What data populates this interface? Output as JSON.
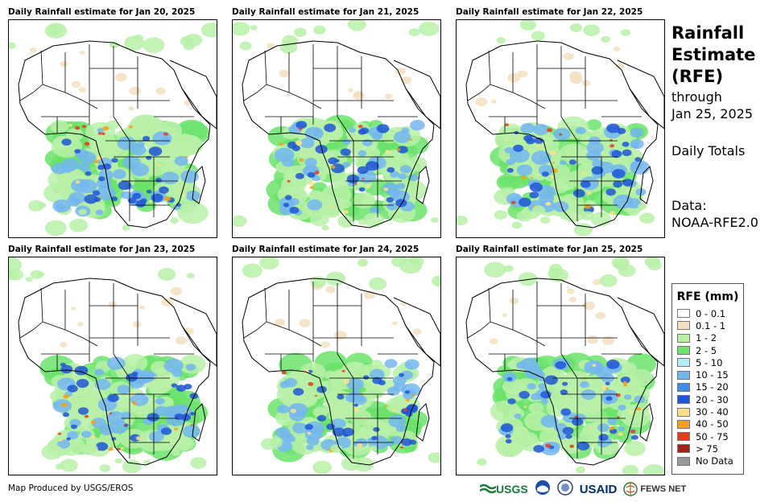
{
  "panels": [
    {
      "title": "Daily Rainfall estimate for Jan 20, 2025"
    },
    {
      "title": "Daily Rainfall estimate for Jan 21, 2025"
    },
    {
      "title": "Daily Rainfall estimate for Jan 22, 2025"
    },
    {
      "title": "Daily Rainfall estimate for Jan 23, 2025"
    },
    {
      "title": "Daily Rainfall estimate for Jan 24, 2025"
    },
    {
      "title": "Daily Rainfall estimate for Jan 25, 2025"
    }
  ],
  "side": {
    "line1": "Rainfall",
    "line2": "Estimate",
    "line3": "(RFE)",
    "through": "through",
    "date": "Jan 25, 2025",
    "totals": "Daily Totals",
    "data_label": "Data:",
    "data_source": "NOAA-RFE2.0"
  },
  "legend": {
    "title": "RFE (mm)",
    "items": [
      {
        "label": "0 - 0.1",
        "color": "#ffffff"
      },
      {
        "label": "0.1 - 1",
        "color": "#f2dfbf"
      },
      {
        "label": "1 - 2",
        "color": "#b8f0a8"
      },
      {
        "label": "2 - 5",
        "color": "#6be36b"
      },
      {
        "label": "5 - 10",
        "color": "#b5ecf5"
      },
      {
        "label": "10 - 15",
        "color": "#73b6f0"
      },
      {
        "label": "15 - 20",
        "color": "#3c8fe8"
      },
      {
        "label": "20 - 30",
        "color": "#1f56d6"
      },
      {
        "label": "30 - 40",
        "color": "#ffe08a"
      },
      {
        "label": "40 - 50",
        "color": "#f5a017"
      },
      {
        "label": "50 - 75",
        "color": "#e83b1a"
      },
      {
        "label": "> 75",
        "color": "#a8201a"
      },
      {
        "label": "No Data",
        "color": "#999999"
      }
    ]
  },
  "footer": {
    "credit": "Map Produced by USGS/EROS"
  },
  "logos": {
    "usgs": "USGS",
    "usaid": "USAID",
    "fewsnet": "FEWS NET"
  }
}
